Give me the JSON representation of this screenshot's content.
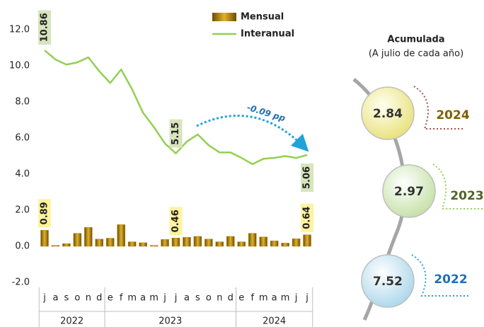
{
  "chart_data": {
    "type": "bar_line",
    "categories": [
      "j",
      "a",
      "s",
      "o",
      "n",
      "d",
      "e",
      "f",
      "m",
      "a",
      "m",
      "j",
      "j",
      "a",
      "s",
      "o",
      "n",
      "d",
      "e",
      "f",
      "m",
      "a",
      "m",
      "j",
      "j"
    ],
    "year_groups": [
      {
        "label": "2022",
        "start": 0,
        "end": 5
      },
      {
        "label": "2023",
        "start": 6,
        "end": 17
      },
      {
        "label": "2024",
        "start": 18,
        "end": 24
      }
    ],
    "series": [
      {
        "name": "Mensual",
        "type": "bar",
        "color": "#b8860b",
        "values": [
          0.89,
          0.05,
          0.15,
          0.72,
          1.05,
          0.4,
          0.45,
          1.2,
          0.25,
          0.2,
          0.05,
          0.38,
          0.46,
          0.5,
          0.55,
          0.4,
          0.25,
          0.55,
          0.25,
          0.72,
          0.52,
          0.3,
          0.18,
          0.42,
          0.64
        ],
        "value_labels": [
          "0.89",
          null,
          null,
          null,
          null,
          null,
          null,
          null,
          null,
          null,
          null,
          null,
          "0.46",
          null,
          null,
          null,
          null,
          null,
          null,
          null,
          null,
          null,
          null,
          null,
          "0.64"
        ]
      },
      {
        "name": "Interanual",
        "type": "line",
        "color": "#92d050",
        "values": [
          10.86,
          10.35,
          10.07,
          10.19,
          10.47,
          9.7,
          9.05,
          9.8,
          8.7,
          7.4,
          6.6,
          5.7,
          5.15,
          5.8,
          6.2,
          5.6,
          5.2,
          5.2,
          4.9,
          4.55,
          4.85,
          4.9,
          5.0,
          4.9,
          5.06
        ],
        "value_labels": [
          "10.86",
          null,
          null,
          null,
          null,
          null,
          null,
          null,
          null,
          null,
          null,
          null,
          "5.15",
          null,
          null,
          null,
          null,
          null,
          null,
          null,
          null,
          null,
          null,
          null,
          "5.06"
        ]
      }
    ],
    "ylim": [
      -2,
      13
    ],
    "yticks": [
      {
        "value": -2,
        "label": "-2.0"
      },
      {
        "value": 0,
        "label": "0.0"
      },
      {
        "value": 2,
        "label": "2.0"
      },
      {
        "value": 4,
        "label": "4.0"
      },
      {
        "value": 6,
        "label": "6.0"
      },
      {
        "value": 8,
        "label": "8.0"
      },
      {
        "value": 10,
        "label": "10.0"
      },
      {
        "value": 12,
        "label": "12.0"
      }
    ],
    "annotation": "-0.09 pp",
    "accumulated": {
      "title": "Acumulada",
      "subtitle": "(A julio de cada año)",
      "items": [
        {
          "label": "2024",
          "value": 2.84,
          "color": "#7f6000"
        },
        {
          "label": "2023",
          "value": 2.97,
          "color": "#4f6228"
        },
        {
          "label": "2022",
          "value": 7.52,
          "color": "#1f6fb3"
        }
      ]
    }
  }
}
